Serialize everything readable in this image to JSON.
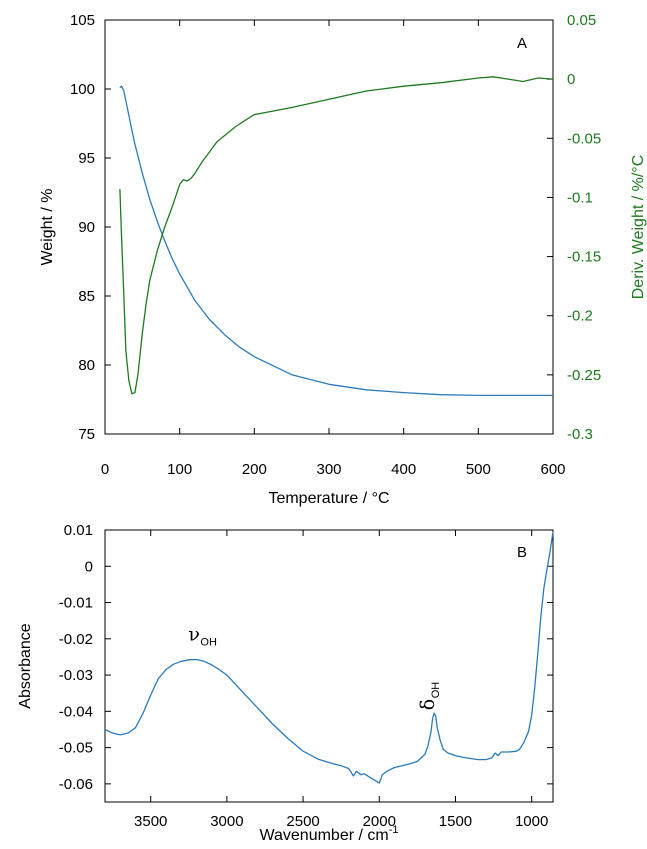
{
  "colors": {
    "blue": "#2b7bba",
    "green": "#1f7a1f",
    "axis": "#000000"
  },
  "chart_data": [
    {
      "panel": "A",
      "type": "line",
      "xlabel": "Temperature / °C",
      "ylabel": "Weight / %",
      "y2label": "Deriv. Weight / %/°C",
      "xlim": [
        0,
        600
      ],
      "ylim": [
        75,
        105
      ],
      "y2lim": [
        -0.3,
        0.05
      ],
      "xticks": [
        "0",
        "100",
        "200",
        "300",
        "400",
        "500",
        "600"
      ],
      "yticks": [
        "75",
        "80",
        "85",
        "90",
        "95",
        "100",
        "105"
      ],
      "y2ticks": [
        "-0.3",
        "-0.25",
        "-0.2",
        "-0.15",
        "-0.1",
        "-0.05",
        "0",
        "0.05"
      ],
      "series": [
        {
          "axis": "left",
          "color": "#2b7bba",
          "x": [
            20,
            22,
            25,
            30,
            35,
            40,
            50,
            60,
            70,
            80,
            90,
            100,
            120,
            140,
            160,
            180,
            200,
            250,
            300,
            350,
            400,
            450,
            500,
            550,
            600
          ],
          "y": [
            100.1,
            100.2,
            99.9,
            98.6,
            97.3,
            96.0,
            93.9,
            92.0,
            90.4,
            89.0,
            87.7,
            86.6,
            84.7,
            83.3,
            82.2,
            81.3,
            80.6,
            79.3,
            78.6,
            78.2,
            78.0,
            77.85,
            77.8,
            77.8,
            77.8
          ]
        },
        {
          "axis": "right",
          "color": "#1f7a1f",
          "x": [
            20,
            22,
            25,
            28,
            32,
            36,
            40,
            44,
            50,
            55,
            60,
            70,
            80,
            90,
            100,
            105,
            110,
            115,
            120,
            130,
            150,
            175,
            200,
            250,
            300,
            350,
            400,
            450,
            500,
            520,
            540,
            560,
            580,
            600
          ],
          "y": [
            -0.093,
            -0.13,
            -0.18,
            -0.23,
            -0.255,
            -0.266,
            -0.265,
            -0.25,
            -0.215,
            -0.19,
            -0.17,
            -0.145,
            -0.125,
            -0.108,
            -0.089,
            -0.085,
            -0.086,
            -0.084,
            -0.08,
            -0.07,
            -0.053,
            -0.04,
            -0.03,
            -0.024,
            -0.017,
            -0.01,
            -0.006,
            -0.003,
            0.001,
            0.002,
            0.0,
            -0.002,
            0.001,
            0.0
          ]
        }
      ]
    },
    {
      "panel": "B",
      "type": "line",
      "xlabel": "Wavenumber / cm",
      "xlabel_sup": "-1",
      "ylabel": "Absorbance",
      "xlim": [
        3800,
        860
      ],
      "ylim": [
        -0.065,
        0.01
      ],
      "xticks": [
        "3500",
        "3000",
        "2500",
        "2000",
        "1500",
        "1000"
      ],
      "yticks": [
        "0.01",
        "0",
        "-0.01",
        "-0.02",
        "-0.03",
        "-0.04",
        "-0.05",
        "-0.06"
      ],
      "annotations": [
        {
          "symbol": "ν",
          "sub": "OH",
          "x": 3200,
          "y": -0.0205
        },
        {
          "symbol": "δ",
          "sub": "OH",
          "x": 1640,
          "y": -0.0375
        }
      ],
      "series": [
        {
          "color": "#2b7bba",
          "x": [
            3800,
            3750,
            3700,
            3650,
            3600,
            3550,
            3500,
            3450,
            3400,
            3350,
            3300,
            3250,
            3200,
            3150,
            3100,
            3050,
            3000,
            2900,
            2800,
            2700,
            2600,
            2500,
            2400,
            2300,
            2250,
            2200,
            2170,
            2150,
            2120,
            2100,
            2050,
            2000,
            1980,
            1950,
            1900,
            1850,
            1800,
            1750,
            1700,
            1680,
            1660,
            1650,
            1640,
            1630,
            1620,
            1600,
            1580,
            1550,
            1500,
            1450,
            1400,
            1350,
            1300,
            1260,
            1240,
            1220,
            1200,
            1150,
            1100,
            1080,
            1050,
            1020,
            1000,
            980,
            960,
            940,
            920,
            900,
            880,
            860
          ],
          "y": [
            -0.045,
            -0.046,
            -0.0465,
            -0.046,
            -0.0445,
            -0.0405,
            -0.0355,
            -0.031,
            -0.0285,
            -0.027,
            -0.0262,
            -0.0258,
            -0.0257,
            -0.0262,
            -0.0272,
            -0.0285,
            -0.03,
            -0.0345,
            -0.039,
            -0.0435,
            -0.0475,
            -0.051,
            -0.0532,
            -0.0545,
            -0.055,
            -0.0558,
            -0.0578,
            -0.0565,
            -0.0575,
            -0.0572,
            -0.0585,
            -0.0598,
            -0.0575,
            -0.0565,
            -0.0555,
            -0.055,
            -0.0545,
            -0.0538,
            -0.0518,
            -0.0495,
            -0.0455,
            -0.042,
            -0.0405,
            -0.0412,
            -0.0445,
            -0.048,
            -0.0505,
            -0.0515,
            -0.0522,
            -0.0527,
            -0.053,
            -0.0533,
            -0.0533,
            -0.0528,
            -0.0515,
            -0.0522,
            -0.0512,
            -0.0512,
            -0.051,
            -0.0505,
            -0.0485,
            -0.0455,
            -0.041,
            -0.0335,
            -0.024,
            -0.014,
            -0.006,
            -0.001,
            0.004,
            0.0095
          ]
        }
      ]
    }
  ]
}
